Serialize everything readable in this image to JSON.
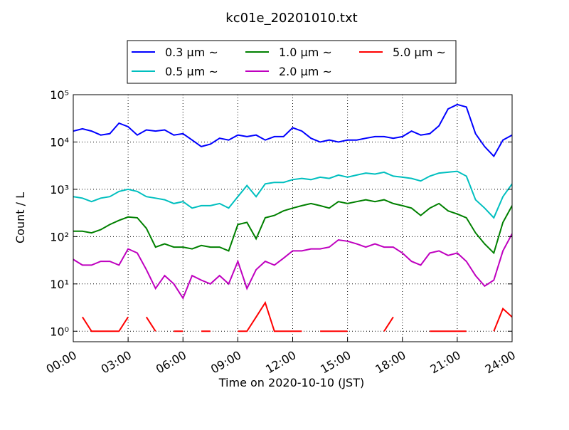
{
  "chart_data": {
    "type": "line",
    "title": "kc01e_20201010.txt",
    "x_label": "Time on 2020-10-10 (JST)",
    "y_label": "Count / L",
    "log_y": true,
    "grid": true,
    "legend": "top",
    "xlim": [
      0,
      24
    ],
    "ylim": [
      0.6,
      100000
    ],
    "xticks": [
      {
        "value": 0,
        "label": "00:00"
      },
      {
        "value": 3,
        "label": "03:00"
      },
      {
        "value": 6,
        "label": "06:00"
      },
      {
        "value": 9,
        "label": "09:00"
      },
      {
        "value": 12,
        "label": "12:00"
      },
      {
        "value": 15,
        "label": "15:00"
      },
      {
        "value": 18,
        "label": "18:00"
      },
      {
        "value": 21,
        "label": "21:00"
      },
      {
        "value": 24,
        "label": "24:00"
      }
    ],
    "yticks": [
      {
        "value": 1,
        "label": "10⁰"
      },
      {
        "value": 10,
        "label": "10¹"
      },
      {
        "value": 100,
        "label": "10²"
      },
      {
        "value": 1000,
        "label": "10³"
      },
      {
        "value": 10000,
        "label": "10⁴"
      },
      {
        "value": 100000,
        "label": "10⁵"
      }
    ],
    "x": [
      0,
      0.5,
      1,
      1.5,
      2,
      2.5,
      3,
      3.5,
      4,
      4.5,
      5,
      5.5,
      6,
      6.5,
      7,
      7.5,
      8,
      8.5,
      9,
      9.5,
      10,
      10.5,
      11,
      11.5,
      12,
      12.5,
      13,
      13.5,
      14,
      14.5,
      15,
      15.5,
      16,
      16.5,
      17,
      17.5,
      18,
      18.5,
      19,
      19.5,
      20,
      20.5,
      21,
      21.5,
      22,
      22.5,
      23,
      23.5,
      24
    ],
    "series": [
      {
        "name": "0.3 μm ~",
        "color": "#0000ff",
        "values": [
          17000,
          19000,
          17000,
          14000,
          15000,
          25000,
          21000,
          14000,
          18000,
          17000,
          18000,
          14000,
          15000,
          11000,
          8000,
          9000,
          12000,
          11000,
          14000,
          13000,
          14000,
          11000,
          13000,
          13000,
          20000,
          17000,
          12000,
          10000,
          11000,
          10000,
          11000,
          11000,
          12000,
          13000,
          13000,
          12000,
          13000,
          17000,
          14000,
          15000,
          22000,
          50000,
          62000,
          55000,
          15000,
          8000,
          5000,
          11000,
          14000
        ]
      },
      {
        "name": "0.5 μm ~",
        "color": "#00bfbf",
        "values": [
          700,
          650,
          550,
          650,
          700,
          900,
          1000,
          900,
          700,
          650,
          600,
          500,
          550,
          400,
          450,
          450,
          500,
          400,
          700,
          1200,
          700,
          1300,
          1400,
          1400,
          1600,
          1700,
          1600,
          1800,
          1700,
          2000,
          1800,
          2000,
          2200,
          2100,
          2300,
          1900,
          1800,
          1700,
          1500,
          1900,
          2200,
          2300,
          2400,
          1900,
          600,
          400,
          250,
          700,
          1300
        ]
      },
      {
        "name": "1.0 μm ~",
        "color": "#008000",
        "values": [
          130,
          130,
          120,
          140,
          180,
          220,
          260,
          250,
          150,
          60,
          70,
          60,
          60,
          55,
          65,
          60,
          60,
          50,
          180,
          200,
          90,
          250,
          280,
          350,
          400,
          450,
          500,
          450,
          400,
          550,
          500,
          550,
          600,
          550,
          600,
          500,
          450,
          400,
          280,
          400,
          500,
          350,
          300,
          250,
          120,
          70,
          45,
          200,
          450
        ]
      },
      {
        "name": "2.0 μm ~",
        "color": "#bf00bf",
        "values": [
          33,
          25,
          25,
          30,
          30,
          25,
          55,
          45,
          20,
          8,
          15,
          10,
          5,
          15,
          12,
          10,
          15,
          10,
          30,
          8,
          20,
          30,
          25,
          35,
          50,
          50,
          55,
          55,
          60,
          85,
          80,
          70,
          60,
          70,
          60,
          60,
          45,
          30,
          25,
          45,
          50,
          40,
          45,
          30,
          15,
          9,
          12,
          50,
          115
        ]
      },
      {
        "name": "5.0 μm ~",
        "color": "#ff0000",
        "values": [
          null,
          2,
          1,
          1,
          1,
          1,
          2,
          null,
          2,
          1,
          null,
          1,
          1,
          null,
          1,
          1,
          null,
          null,
          1,
          1,
          2,
          4,
          1,
          1,
          1,
          1,
          null,
          1,
          1,
          1,
          1,
          null,
          1,
          null,
          1,
          2,
          null,
          null,
          null,
          1,
          1,
          1,
          1,
          1,
          null,
          null,
          1,
          3,
          2
        ]
      }
    ]
  }
}
